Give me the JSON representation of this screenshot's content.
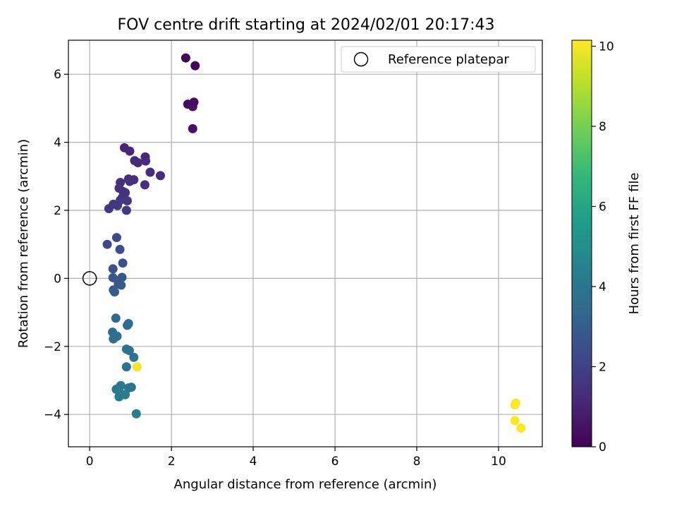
{
  "chart_data": {
    "type": "scatter",
    "title": "FOV centre drift starting at 2024/02/01 20:17:43",
    "xlabel": "Angular distance from reference (arcmin)",
    "ylabel": "Rotation from reference (arcmin)",
    "xlim": [
      -0.52,
      11.07
    ],
    "ylim": [
      -4.95,
      7.0
    ],
    "x_ticks": [
      0,
      2,
      4,
      6,
      8,
      10
    ],
    "y_ticks": [
      -4,
      -2,
      0,
      2,
      4,
      6
    ],
    "x_tick_labels": [
      "0",
      "2",
      "4",
      "6",
      "8",
      "10"
    ],
    "y_tick_labels": [
      "−4",
      "−2",
      "0",
      "2",
      "4",
      "6"
    ],
    "grid": true,
    "legend": {
      "position": "top-right",
      "entries": [
        "Reference platepar"
      ]
    },
    "reference_point": {
      "x": 0,
      "y": 0,
      "label": "Reference platepar"
    },
    "colorbar": {
      "label": "Hours from first FF file",
      "range": [
        0,
        10.15
      ],
      "ticks": [
        0,
        2,
        4,
        6,
        8,
        10
      ],
      "tick_labels": [
        "0",
        "2",
        "4",
        "6",
        "8",
        "10"
      ],
      "colormap": "viridis"
    },
    "points": [
      {
        "x": 2.35,
        "y": 6.48,
        "c": 0.1
      },
      {
        "x": 2.58,
        "y": 6.25,
        "c": 0.15
      },
      {
        "x": 2.4,
        "y": 5.12,
        "c": 0.3
      },
      {
        "x": 2.48,
        "y": 5.1,
        "c": 0.35
      },
      {
        "x": 2.55,
        "y": 5.18,
        "c": 0.4
      },
      {
        "x": 2.52,
        "y": 5.05,
        "c": 0.45
      },
      {
        "x": 2.52,
        "y": 4.4,
        "c": 0.5
      },
      {
        "x": 0.85,
        "y": 3.84,
        "c": 1.1
      },
      {
        "x": 0.98,
        "y": 3.74,
        "c": 1.15
      },
      {
        "x": 1.36,
        "y": 3.57,
        "c": 1.2
      },
      {
        "x": 1.1,
        "y": 3.46,
        "c": 1.2
      },
      {
        "x": 1.18,
        "y": 3.4,
        "c": 1.25
      },
      {
        "x": 1.37,
        "y": 3.45,
        "c": 1.25
      },
      {
        "x": 1.48,
        "y": 3.12,
        "c": 1.3
      },
      {
        "x": 1.73,
        "y": 3.02,
        "c": 1.3
      },
      {
        "x": 1.35,
        "y": 2.75,
        "c": 1.35
      },
      {
        "x": 0.95,
        "y": 2.92,
        "c": 1.4
      },
      {
        "x": 1.08,
        "y": 2.9,
        "c": 1.4
      },
      {
        "x": 0.75,
        "y": 2.82,
        "c": 1.45
      },
      {
        "x": 0.98,
        "y": 2.85,
        "c": 1.45
      },
      {
        "x": 0.72,
        "y": 2.65,
        "c": 1.5
      },
      {
        "x": 0.82,
        "y": 2.55,
        "c": 1.5
      },
      {
        "x": 0.87,
        "y": 2.52,
        "c": 1.55
      },
      {
        "x": 0.8,
        "y": 2.38,
        "c": 1.55
      },
      {
        "x": 0.75,
        "y": 2.3,
        "c": 1.6
      },
      {
        "x": 0.92,
        "y": 2.28,
        "c": 1.6
      },
      {
        "x": 0.58,
        "y": 2.18,
        "c": 1.65
      },
      {
        "x": 0.68,
        "y": 2.14,
        "c": 1.7
      },
      {
        "x": 0.47,
        "y": 2.05,
        "c": 1.7
      },
      {
        "x": 0.9,
        "y": 2.0,
        "c": 1.75
      },
      {
        "x": 0.66,
        "y": 1.2,
        "c": 2.2
      },
      {
        "x": 0.43,
        "y": 1.0,
        "c": 2.3
      },
      {
        "x": 0.74,
        "y": 0.85,
        "c": 2.4
      },
      {
        "x": 0.81,
        "y": 0.45,
        "c": 2.5
      },
      {
        "x": 0.57,
        "y": 0.28,
        "c": 2.6
      },
      {
        "x": 0.57,
        "y": 0.02,
        "c": 2.7
      },
      {
        "x": 0.79,
        "y": 0.03,
        "c": 2.75
      },
      {
        "x": 0.7,
        "y": -0.15,
        "c": 2.8
      },
      {
        "x": 0.77,
        "y": -0.2,
        "c": 2.85
      },
      {
        "x": 0.58,
        "y": -0.34,
        "c": 2.9
      },
      {
        "x": 0.61,
        "y": -0.4,
        "c": 2.95
      },
      {
        "x": 0.64,
        "y": -1.17,
        "c": 3.4
      },
      {
        "x": 0.95,
        "y": -1.33,
        "c": 3.5
      },
      {
        "x": 0.92,
        "y": -1.38,
        "c": 3.5
      },
      {
        "x": 0.56,
        "y": -1.58,
        "c": 3.6
      },
      {
        "x": 0.67,
        "y": -1.7,
        "c": 3.65
      },
      {
        "x": 0.58,
        "y": -1.78,
        "c": 3.7
      },
      {
        "x": 0.9,
        "y": -2.08,
        "c": 3.8
      },
      {
        "x": 0.97,
        "y": -2.12,
        "c": 3.8
      },
      {
        "x": 1.08,
        "y": -2.32,
        "c": 3.85
      },
      {
        "x": 0.9,
        "y": -2.6,
        "c": 3.9
      },
      {
        "x": 1.16,
        "y": -2.6,
        "c": 10.0
      },
      {
        "x": 1.02,
        "y": -3.2,
        "c": 4.0
      },
      {
        "x": 0.95,
        "y": -3.22,
        "c": 4.05
      },
      {
        "x": 0.76,
        "y": -3.15,
        "c": 4.1
      },
      {
        "x": 0.65,
        "y": -3.26,
        "c": 4.1
      },
      {
        "x": 0.72,
        "y": -3.3,
        "c": 4.15
      },
      {
        "x": 0.87,
        "y": -3.42,
        "c": 4.2
      },
      {
        "x": 0.72,
        "y": -3.48,
        "c": 4.2
      },
      {
        "x": 1.14,
        "y": -3.98,
        "c": 4.3
      },
      {
        "x": 10.42,
        "y": -3.67,
        "c": 10.05
      },
      {
        "x": 10.4,
        "y": -3.72,
        "c": 10.1
      },
      {
        "x": 10.4,
        "y": -4.18,
        "c": 10.1
      },
      {
        "x": 10.55,
        "y": -4.4,
        "c": 10.15
      }
    ]
  }
}
